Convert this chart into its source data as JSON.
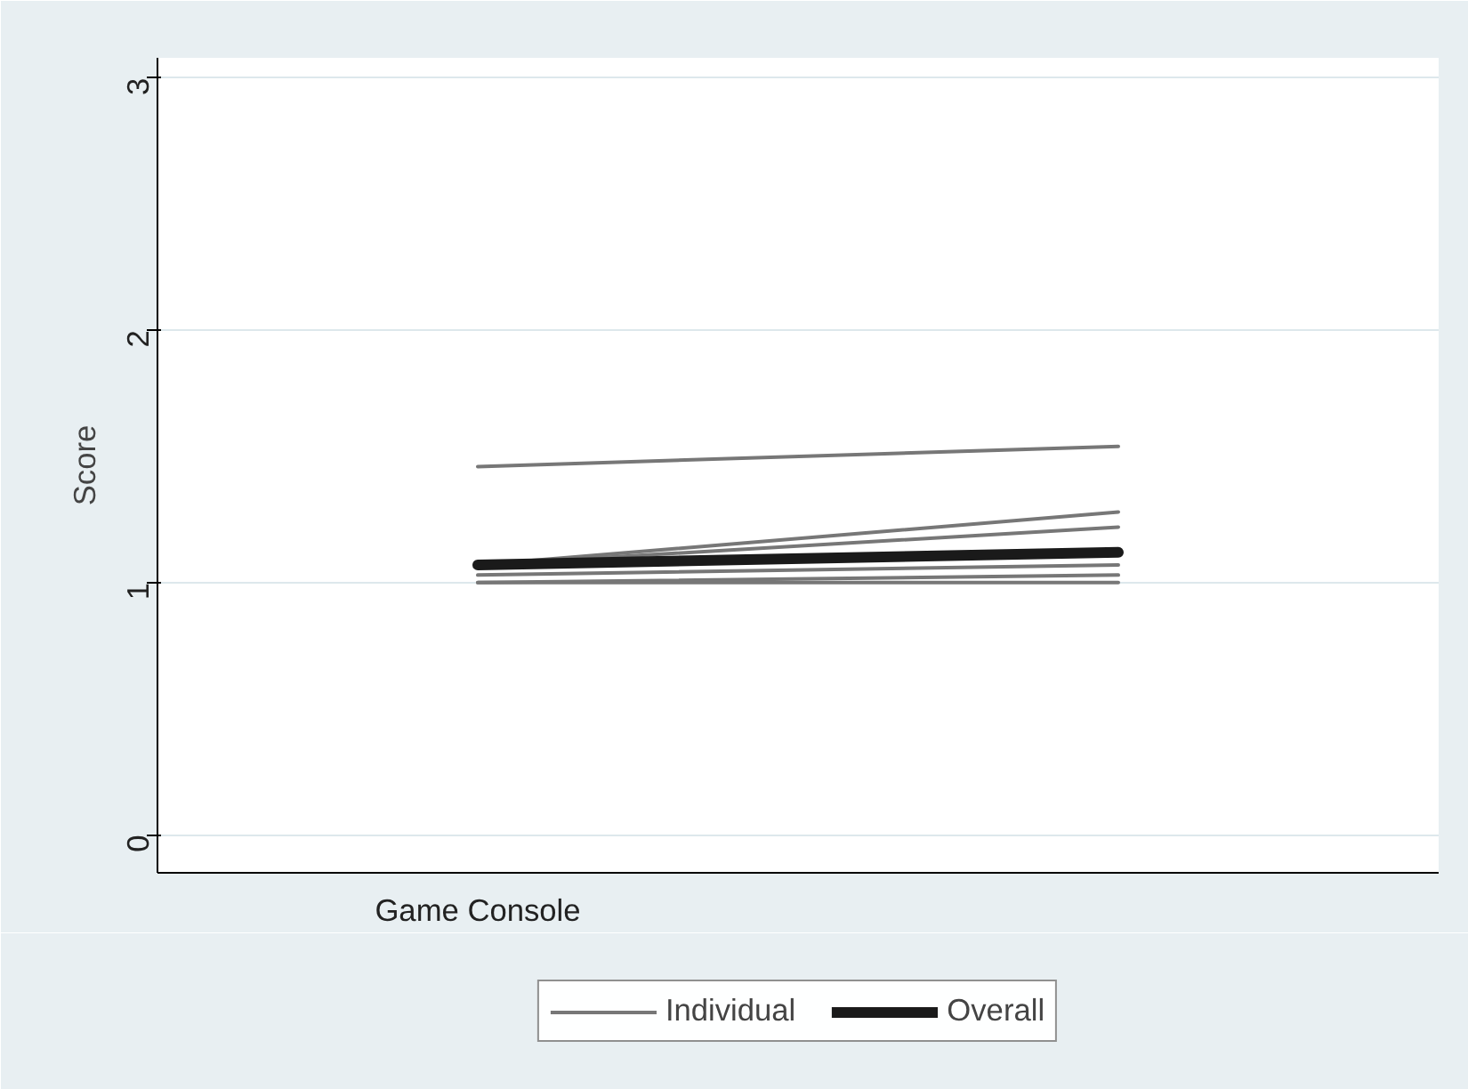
{
  "chart_data": {
    "type": "line",
    "ylabel": "Score",
    "categories": [
      "Game Console",
      null
    ],
    "ylim": [
      -0.15,
      3.08
    ],
    "yticks": [
      0,
      1,
      2,
      3
    ],
    "grid": "y",
    "legend": "bottom",
    "series": [
      {
        "name": "Individual",
        "color": "#777777",
        "values": [
          1.46,
          1.54
        ]
      },
      {
        "color": "#777777",
        "values": [
          1.07,
          1.28
        ]
      },
      {
        "color": "#777777",
        "values": [
          1.07,
          1.22
        ]
      },
      {
        "color": "#777777",
        "values": [
          1.03,
          1.07
        ]
      },
      {
        "color": "#777777",
        "values": [
          1.0,
          1.03
        ]
      },
      {
        "color": "#777777",
        "values": [
          1.0,
          1.0
        ]
      },
      {
        "name": "Overall",
        "color": "#1a1a1a",
        "values": [
          1.07,
          1.12
        ]
      }
    ]
  }
}
